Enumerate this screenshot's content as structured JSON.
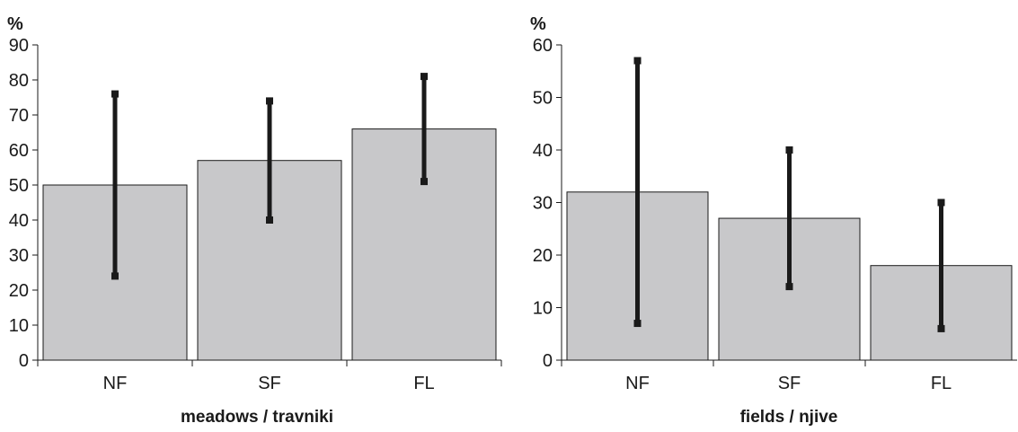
{
  "chart_data": [
    {
      "type": "bar",
      "ylabel": "%",
      "xlabel": "meadows / travniki",
      "categories": [
        "NF",
        "SF",
        "FL"
      ],
      "values": [
        50,
        57,
        66
      ],
      "error_low": [
        24,
        40,
        51
      ],
      "error_high": [
        76,
        74,
        81
      ],
      "ylim": [
        0,
        90
      ],
      "yticks": [
        0,
        10,
        20,
        30,
        40,
        50,
        60,
        70,
        80,
        90
      ],
      "bar_color": "#c8c8ca",
      "error_color": "#1a1a1a"
    },
    {
      "type": "bar",
      "ylabel": "%",
      "xlabel": "fields / njive",
      "categories": [
        "NF",
        "SF",
        "FL"
      ],
      "values": [
        32,
        27,
        18
      ],
      "error_low": [
        7,
        14,
        6
      ],
      "error_high": [
        57,
        40,
        30
      ],
      "ylim": [
        0,
        60
      ],
      "yticks": [
        0,
        10,
        20,
        30,
        40,
        50,
        60
      ],
      "bar_color": "#c8c8ca",
      "error_color": "#1a1a1a"
    }
  ]
}
